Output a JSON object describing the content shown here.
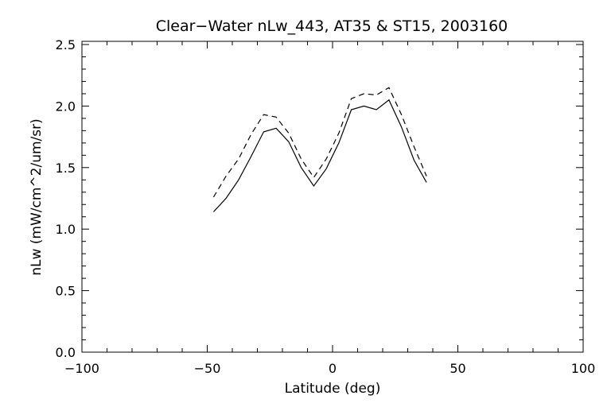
{
  "chart_data": {
    "type": "line",
    "title": "Clear−Water nLw_443, AT35 & ST15, 2003160",
    "xlabel": "Latitude (deg)",
    "ylabel": "nLw (mW/cm^2/um/sr)",
    "xlim": [
      -100,
      100
    ],
    "ylim": [
      0.0,
      2.5
    ],
    "x_ticks": [
      "−100",
      "−50",
      "0",
      "50",
      "100"
    ],
    "y_ticks": [
      "0.0",
      "0.5",
      "1.0",
      "1.5",
      "2.0",
      "2.5"
    ],
    "grid": false,
    "series": [
      {
        "line_style": "solid",
        "color": "#000000",
        "x": [
          -47.5,
          -42.5,
          -37.5,
          -32.5,
          -27.5,
          -22.5,
          -17.5,
          -12.5,
          -7.5,
          -2.5,
          2.5,
          7.5,
          12.5,
          17.5,
          22.5,
          27.5,
          32.5,
          37.5
        ],
        "y": [
          1.14,
          1.25,
          1.4,
          1.59,
          1.79,
          1.82,
          1.71,
          1.5,
          1.35,
          1.49,
          1.7,
          1.97,
          2.0,
          1.97,
          2.05,
          1.83,
          1.56,
          1.38
        ]
      },
      {
        "line_style": "dashed",
        "color": "#000000",
        "x": [
          -47.5,
          -42.5,
          -37.5,
          -32.5,
          -27.5,
          -22.5,
          -17.5,
          -12.5,
          -7.5,
          -2.5,
          2.5,
          7.5,
          12.5,
          17.5,
          22.5,
          27.5,
          32.5,
          37.5
        ],
        "y": [
          1.26,
          1.43,
          1.57,
          1.77,
          1.93,
          1.91,
          1.78,
          1.57,
          1.42,
          1.57,
          1.78,
          2.06,
          2.1,
          2.09,
          2.15,
          1.93,
          1.67,
          1.43
        ]
      }
    ]
  }
}
